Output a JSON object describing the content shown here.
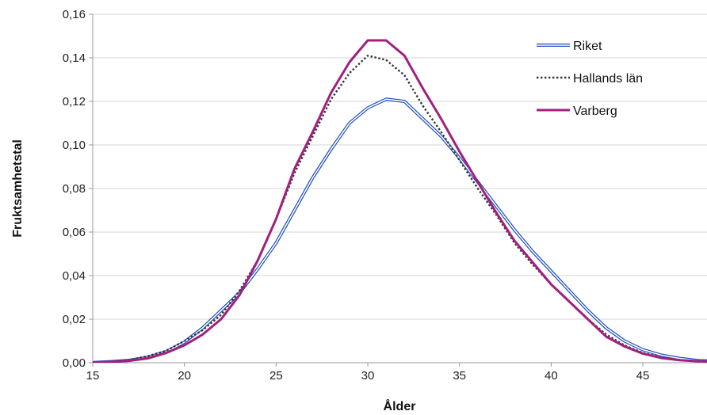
{
  "chart_data": {
    "type": "line",
    "xlabel": "Ålder",
    "ylabel": "Fruktsamhetstal",
    "xlim": [
      15,
      48.5
    ],
    "ylim": [
      0,
      0.16
    ],
    "x_ticks": [
      15,
      20,
      25,
      30,
      35,
      40,
      45
    ],
    "x_tick_labels": [
      "15",
      "20",
      "25",
      "30",
      "35",
      "40",
      "45"
    ],
    "y_ticks": [
      0,
      0.02,
      0.04,
      0.06,
      0.08,
      0.1,
      0.12,
      0.14,
      0.16
    ],
    "y_tick_labels": [
      "0,00",
      "0,02",
      "0,04",
      "0,06",
      "0,08",
      "0,10",
      "0,12",
      "0,14",
      "0,16"
    ],
    "grid": true,
    "legend_position": "top-right",
    "x": [
      15,
      16,
      17,
      18,
      19,
      20,
      21,
      22,
      23,
      24,
      25,
      26,
      27,
      28,
      29,
      30,
      31,
      32,
      33,
      34,
      35,
      36,
      37,
      38,
      39,
      40,
      41,
      42,
      43,
      44,
      45,
      46,
      47,
      48,
      49
    ],
    "series": [
      {
        "name": "Riket",
        "color": "#1f4fbf",
        "style": "double",
        "values": [
          0.0001,
          0.0005,
          0.0011,
          0.0025,
          0.005,
          0.0095,
          0.016,
          0.024,
          0.032,
          0.043,
          0.055,
          0.07,
          0.085,
          0.098,
          0.11,
          0.117,
          0.121,
          0.12,
          0.112,
          0.104,
          0.094,
          0.083,
          0.072,
          0.061,
          0.051,
          0.042,
          0.033,
          0.024,
          0.016,
          0.01,
          0.006,
          0.0035,
          0.002,
          0.001,
          0.0007
        ]
      },
      {
        "name": "Hallands län",
        "color": "#333333",
        "style": "dotted",
        "values": [
          0.0001,
          0.0005,
          0.0012,
          0.003,
          0.0055,
          0.01,
          0.015,
          0.022,
          0.033,
          0.047,
          0.066,
          0.087,
          0.104,
          0.121,
          0.133,
          0.141,
          0.139,
          0.132,
          0.118,
          0.106,
          0.093,
          0.08,
          0.068,
          0.055,
          0.045,
          0.036,
          0.028,
          0.02,
          0.013,
          0.008,
          0.0045,
          0.0025,
          0.0013,
          0.0008,
          0.0005
        ]
      },
      {
        "name": "Varberg",
        "color": "#a0207e",
        "style": "solid",
        "values": [
          0.0001,
          0.0004,
          0.0009,
          0.002,
          0.0045,
          0.008,
          0.013,
          0.02,
          0.031,
          0.047,
          0.066,
          0.089,
          0.106,
          0.124,
          0.138,
          0.148,
          0.148,
          0.141,
          0.126,
          0.112,
          0.097,
          0.083,
          0.069,
          0.056,
          0.046,
          0.036,
          0.028,
          0.02,
          0.012,
          0.0075,
          0.0042,
          0.0022,
          0.0012,
          0.0007,
          0.0005
        ]
      }
    ]
  }
}
